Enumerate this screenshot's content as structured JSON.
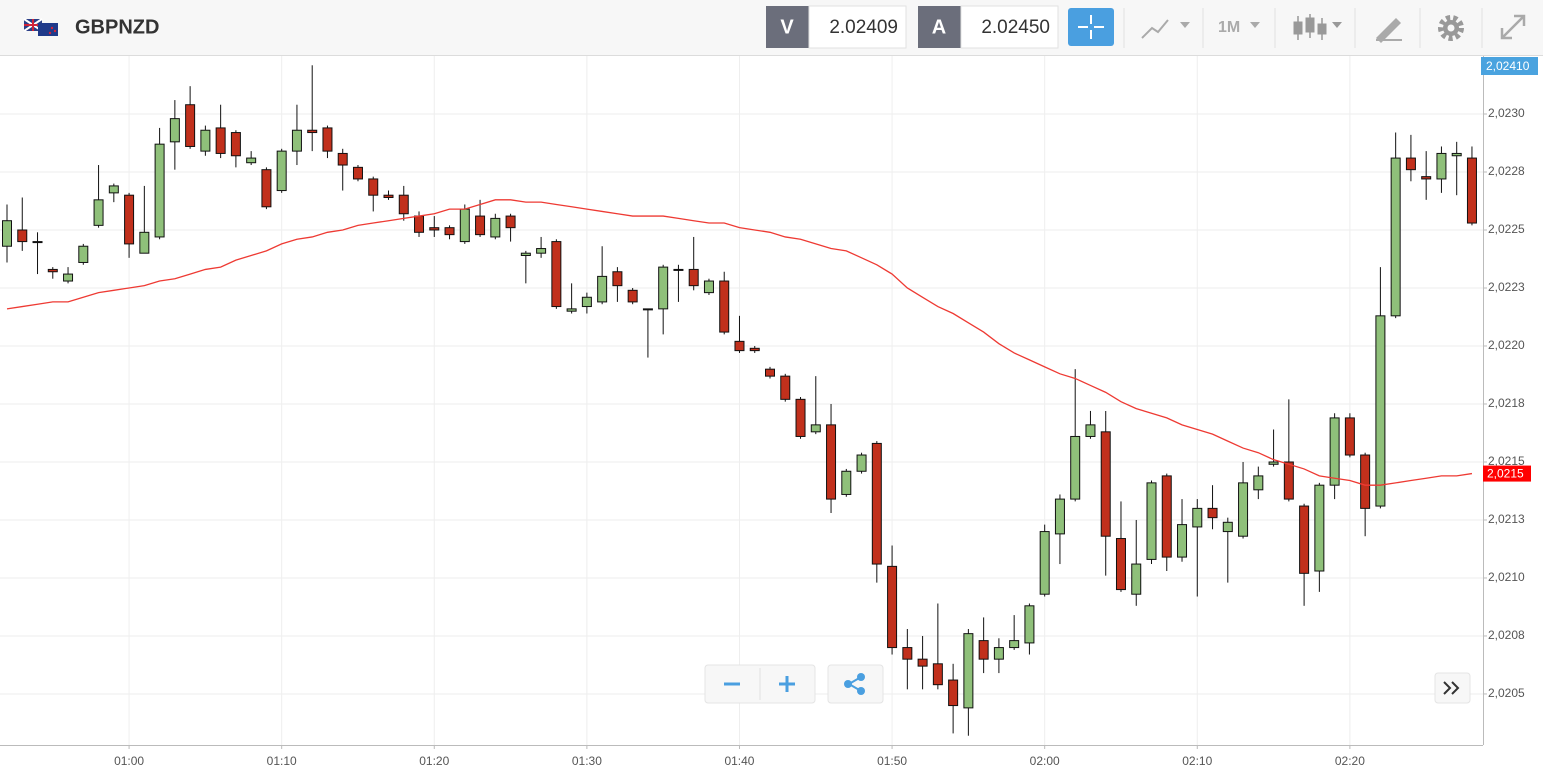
{
  "toolbar": {
    "symbol": "GBPNZD",
    "sell_label": "V",
    "sell_price": "2.02409",
    "buy_label": "A",
    "buy_price": "2.02450",
    "timeframe": "1M"
  },
  "chart_data": {
    "type": "candlestick",
    "x": [
      "00:52",
      "00:53",
      "00:54",
      "00:55",
      "00:56",
      "00:57",
      "00:58",
      "00:59",
      "01:00",
      "01:01",
      "01:02",
      "01:03",
      "01:04",
      "01:05",
      "01:06",
      "01:07",
      "01:08",
      "01:09",
      "01:10",
      "01:11",
      "01:12",
      "01:13",
      "01:14",
      "01:15",
      "01:16",
      "01:17",
      "01:18",
      "01:19",
      "01:20",
      "01:21",
      "01:22",
      "01:23",
      "01:24",
      "01:25",
      "01:26",
      "01:27",
      "01:28",
      "01:29",
      "01:30",
      "01:31",
      "01:32",
      "01:33",
      "01:34",
      "01:35",
      "01:36",
      "01:37",
      "01:38",
      "01:39",
      "01:40",
      "01:41",
      "01:42",
      "01:43",
      "01:44",
      "01:45",
      "01:46",
      "01:47",
      "01:48",
      "01:49",
      "01:50",
      "01:51",
      "01:52",
      "01:53",
      "01:54",
      "01:55",
      "01:56",
      "01:57",
      "01:58",
      "01:59",
      "02:00",
      "02:01",
      "02:02",
      "02:03",
      "02:04",
      "02:05",
      "02:06",
      "02:07",
      "02:08",
      "02:09",
      "02:10",
      "02:11",
      "02:12",
      "02:13",
      "02:14",
      "02:15",
      "02:16",
      "02:17",
      "02:18",
      "02:19",
      "02:20",
      "02:21",
      "02:22",
      "02:23",
      "02:24",
      "02:25",
      "02:26",
      "02:27",
      "02:28"
    ],
    "open": [
      2.02243,
      2.0225,
      2.02245,
      2.02233,
      2.02228,
      2.02236,
      2.02252,
      2.02266,
      2.02265,
      2.0224,
      2.02247,
      2.02288,
      2.02304,
      2.02284,
      2.02294,
      2.02292,
      2.02279,
      2.02276,
      2.02267,
      2.02284,
      2.02293,
      2.02294,
      2.02283,
      2.02277,
      2.02272,
      2.02265,
      2.02265,
      2.02256,
      2.02251,
      2.02251,
      2.02245,
      2.02256,
      2.02247,
      2.02256,
      2.02239,
      2.0224,
      2.02245,
      2.02215,
      2.02217,
      2.02219,
      2.02232,
      2.02224,
      2.02216,
      2.02216,
      2.02233,
      2.02233,
      2.02223,
      2.02228,
      2.02202,
      2.02199,
      2.0219,
      2.02187,
      2.02177,
      2.02163,
      2.02166,
      2.02136,
      2.02146,
      2.02158,
      2.02105,
      2.0207,
      2.02065,
      2.02063,
      2.02056,
      2.02044,
      2.02073,
      2.02065,
      2.0207,
      2.02072,
      2.02093,
      2.02119,
      2.02134,
      2.02161,
      2.02163,
      2.02117,
      2.02093,
      2.02108,
      2.02144,
      2.02109,
      2.02122,
      2.0213,
      2.0212,
      2.02118,
      2.02138,
      2.02149,
      2.0215,
      2.02131,
      2.02103,
      2.0214,
      2.02169,
      2.02153,
      2.02131,
      2.02213,
      2.02281,
      2.02273,
      2.02272,
      2.02282,
      2.02281
    ],
    "high": [
      2.02261,
      2.02264,
      2.02249,
      2.02234,
      2.02234,
      2.02244,
      2.02278,
      2.0227,
      2.02266,
      2.02269,
      2.02294,
      2.02306,
      2.02312,
      2.02295,
      2.02304,
      2.02293,
      2.02284,
      2.02277,
      2.02285,
      2.02304,
      2.02321,
      2.02295,
      2.02285,
      2.02278,
      2.02273,
      2.02267,
      2.02269,
      2.02258,
      2.02256,
      2.02252,
      2.02261,
      2.02263,
      2.02257,
      2.02257,
      2.02241,
      2.02247,
      2.02246,
      2.02227,
      2.02223,
      2.02243,
      2.02234,
      2.02225,
      2.02216,
      2.02235,
      2.02235,
      2.02247,
      2.02229,
      2.02232,
      2.02213,
      2.022,
      2.02191,
      2.02188,
      2.02178,
      2.02187,
      2.02175,
      2.02147,
      2.02154,
      2.02159,
      2.02114,
      2.02078,
      2.02075,
      2.02089,
      2.02063,
      2.02078,
      2.02083,
      2.02074,
      2.02084,
      2.02089,
      2.02123,
      2.02136,
      2.0219,
      2.02172,
      2.02172,
      2.02133,
      2.02125,
      2.02142,
      2.02145,
      2.02134,
      2.02134,
      2.0214,
      2.02126,
      2.0215,
      2.02148,
      2.02164,
      2.02177,
      2.02132,
      2.02141,
      2.02171,
      2.02171,
      2.02154,
      2.02234,
      2.02292,
      2.02291,
      2.02284,
      2.02286,
      2.02288,
      2.02286
    ],
    "low": [
      2.02236,
      2.02241,
      2.02231,
      2.02229,
      2.02227,
      2.02235,
      2.02251,
      2.02262,
      2.02238,
      2.0224,
      2.02246,
      2.02276,
      2.02285,
      2.02282,
      2.02281,
      2.02277,
      2.02278,
      2.02259,
      2.02266,
      2.02278,
      2.02284,
      2.02281,
      2.02267,
      2.02271,
      2.02258,
      2.02263,
      2.02254,
      2.02247,
      2.02247,
      2.02246,
      2.02244,
      2.02247,
      2.02246,
      2.02245,
      2.02227,
      2.02238,
      2.02216,
      2.02214,
      2.02214,
      2.02218,
      2.02219,
      2.02218,
      2.02195,
      2.02205,
      2.02219,
      2.02224,
      2.02222,
      2.02205,
      2.02197,
      2.02197,
      2.02186,
      2.02176,
      2.0216,
      2.02162,
      2.02128,
      2.02135,
      2.02145,
      2.02098,
      2.02067,
      2.02052,
      2.02052,
      2.02052,
      2.02033,
      2.02032,
      2.02059,
      2.02059,
      2.02069,
      2.02067,
      2.02092,
      2.02106,
      2.02133,
      2.0216,
      2.02101,
      2.02094,
      2.02088,
      2.02106,
      2.02103,
      2.02107,
      2.02092,
      2.02121,
      2.02098,
      2.02117,
      2.02134,
      2.02148,
      2.02133,
      2.02088,
      2.02094,
      2.02134,
      2.02152,
      2.02118,
      2.0213,
      2.02212,
      2.02271,
      2.02263,
      2.02266,
      2.02265,
      2.02252
    ],
    "close": [
      2.02254,
      2.02245,
      2.02245,
      2.02232,
      2.02231,
      2.02243,
      2.02263,
      2.02269,
      2.02244,
      2.02249,
      2.02287,
      2.02298,
      2.02286,
      2.02293,
      2.02283,
      2.02282,
      2.02281,
      2.0226,
      2.02284,
      2.02293,
      2.02292,
      2.02284,
      2.02278,
      2.02272,
      2.02265,
      2.02264,
      2.02257,
      2.02249,
      2.0225,
      2.02248,
      2.02259,
      2.02248,
      2.02255,
      2.02251,
      2.0224,
      2.02242,
      2.02217,
      2.02216,
      2.02221,
      2.0223,
      2.02226,
      2.02219,
      2.02216,
      2.02234,
      2.02233,
      2.02226,
      2.02228,
      2.02206,
      2.02198,
      2.02198,
      2.02187,
      2.02177,
      2.02161,
      2.02166,
      2.02134,
      2.02146,
      2.02153,
      2.02106,
      2.0207,
      2.02065,
      2.02062,
      2.02054,
      2.02045,
      2.02076,
      2.02065,
      2.0207,
      2.02073,
      2.02088,
      2.0212,
      2.02134,
      2.02161,
      2.02166,
      2.02118,
      2.02095,
      2.02106,
      2.02141,
      2.02109,
      2.02123,
      2.0213,
      2.02126,
      2.02124,
      2.02141,
      2.02144,
      2.0215,
      2.02134,
      2.02102,
      2.0214,
      2.02169,
      2.02153,
      2.0213,
      2.02213,
      2.02281,
      2.02276,
      2.02272,
      2.02283,
      2.02283,
      2.02253
    ],
    "up_color": "#8fc07a",
    "down_color": "#c1301c",
    "ma": {
      "color": "#ee3a33",
      "values": [
        2.02216,
        2.02217,
        2.02218,
        2.02219,
        2.02219,
        2.02221,
        2.02223,
        2.02224,
        2.02225,
        2.02226,
        2.02228,
        2.02229,
        2.02231,
        2.02233,
        2.02234,
        2.02237,
        2.02239,
        2.02241,
        2.02244,
        2.02246,
        2.02247,
        2.02249,
        2.0225,
        2.02252,
        2.02253,
        2.02254,
        2.02255,
        2.02256,
        2.02257,
        2.02259,
        2.02259,
        2.02261,
        2.02263,
        2.02263,
        2.02262,
        2.02262,
        2.02261,
        2.0226,
        2.02259,
        2.02258,
        2.02257,
        2.02256,
        2.02256,
        2.02256,
        2.02255,
        2.02254,
        2.02253,
        2.02253,
        2.02251,
        2.0225,
        2.02249,
        2.02247,
        2.02246,
        2.02244,
        2.02242,
        2.02241,
        2.02238,
        2.02235,
        2.02231,
        2.02225,
        2.02221,
        2.02217,
        2.02214,
        2.0221,
        2.02206,
        2.02201,
        2.02197,
        2.02194,
        2.02191,
        2.02188,
        2.02186,
        2.02183,
        2.0218,
        2.02176,
        2.02173,
        2.02171,
        2.02169,
        2.02166,
        2.02164,
        2.02162,
        2.02159,
        2.02156,
        2.02154,
        2.02151,
        2.02149,
        2.02147,
        2.02144,
        2.02143,
        2.02142,
        2.0214,
        2.0214,
        2.02141,
        2.02142,
        2.02143,
        2.02144,
        2.02144,
        2.02145
      ]
    },
    "ma_label": "2,0215",
    "price_label": "2,02410",
    "ylim": [
      2.02028,
      2.02325
    ],
    "yticks": [
      {
        "value": 2.023,
        "label": "2,0230"
      },
      {
        "value": 2.02275,
        "label": "2,0228"
      },
      {
        "value": 2.0225,
        "label": "2,0225"
      },
      {
        "value": 2.02225,
        "label": "2,0223"
      },
      {
        "value": 2.022,
        "label": "2,0220"
      },
      {
        "value": 2.02175,
        "label": "2,0218"
      },
      {
        "value": 2.0215,
        "label": "2,0215"
      },
      {
        "value": 2.02125,
        "label": "2,0213"
      },
      {
        "value": 2.021,
        "label": "2,0210"
      },
      {
        "value": 2.02075,
        "label": "2,0208"
      },
      {
        "value": 2.0205,
        "label": "2,0205"
      }
    ],
    "xticks": [
      "01:00",
      "01:10",
      "01:20",
      "01:30",
      "01:40",
      "01:50",
      "02:00",
      "02:10",
      "02:20"
    ],
    "grid": true
  }
}
